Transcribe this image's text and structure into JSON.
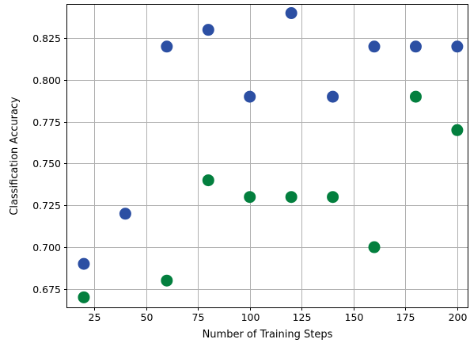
{
  "chart_data": {
    "type": "scatter",
    "title": "",
    "xlabel": "Number of Training Steps",
    "ylabel": "Classification Accuracy",
    "xlim": [
      12,
      205
    ],
    "ylim": [
      0.664,
      0.845
    ],
    "xticks": [
      25,
      50,
      75,
      100,
      125,
      150,
      175,
      200
    ],
    "xtick_labels": [
      "25",
      "50",
      "75",
      "100",
      "125",
      "150",
      "175",
      "200"
    ],
    "yticks": [
      0.675,
      0.7,
      0.725,
      0.75,
      0.775,
      0.8,
      0.825
    ],
    "ytick_labels": [
      "0.675",
      "0.700",
      "0.725",
      "0.750",
      "0.775",
      "0.800",
      "0.825"
    ],
    "grid": true,
    "legend": null,
    "series": [
      {
        "color": "#2c4fa3",
        "points": [
          {
            "x": 20,
            "y": 0.69
          },
          {
            "x": 40,
            "y": 0.72
          },
          {
            "x": 60,
            "y": 0.82
          },
          {
            "x": 80,
            "y": 0.83
          },
          {
            "x": 100,
            "y": 0.79
          },
          {
            "x": 120,
            "y": 0.84
          },
          {
            "x": 140,
            "y": 0.79
          },
          {
            "x": 160,
            "y": 0.82
          },
          {
            "x": 180,
            "y": 0.82
          },
          {
            "x": 200,
            "y": 0.82
          }
        ]
      },
      {
        "color": "#037f3e",
        "points": [
          {
            "x": 20,
            "y": 0.67
          },
          {
            "x": 60,
            "y": 0.68
          },
          {
            "x": 80,
            "y": 0.74
          },
          {
            "x": 100,
            "y": 0.73
          },
          {
            "x": 120,
            "y": 0.73
          },
          {
            "x": 140,
            "y": 0.73
          },
          {
            "x": 160,
            "y": 0.7
          },
          {
            "x": 180,
            "y": 0.79
          },
          {
            "x": 200,
            "y": 0.77
          }
        ]
      }
    ]
  }
}
